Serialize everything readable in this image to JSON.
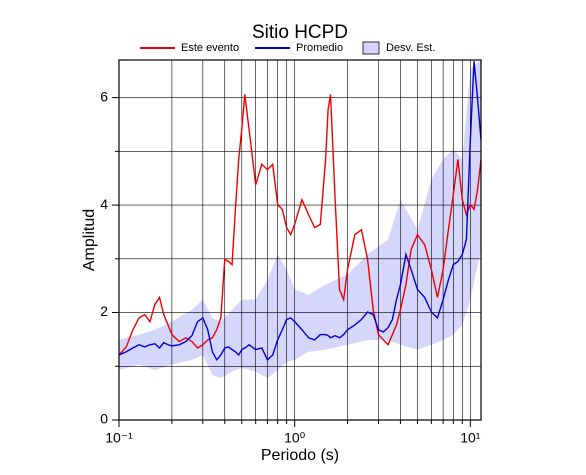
{
  "chart_data": {
    "type": "line",
    "title": "Sitio HCPD",
    "x_label": "Periodo (s)",
    "y_label": "Amplitud",
    "x_scale": "log",
    "xlim": [
      0.1,
      11.5
    ],
    "ylim": [
      0,
      6.7
    ],
    "xticks": [
      {
        "value": 0.1,
        "label": "10⁻¹"
      },
      {
        "value": 1,
        "label": "10⁰"
      },
      {
        "value": 10,
        "label": "10¹"
      }
    ],
    "xgrid": [
      0.2,
      0.3,
      0.4,
      0.5,
      0.6,
      0.7,
      0.8,
      0.9,
      2,
      3,
      4,
      5,
      6,
      7,
      8,
      9
    ],
    "yticks": [
      0,
      2,
      4,
      6
    ],
    "ygrid": [
      1,
      3,
      5
    ],
    "grid": true,
    "x": [
      0.1,
      0.11,
      0.12,
      0.13,
      0.14,
      0.15,
      0.16,
      0.17,
      0.18,
      0.19,
      0.2,
      0.22,
      0.24,
      0.26,
      0.28,
      0.3,
      0.32,
      0.34,
      0.36,
      0.38,
      0.4,
      0.42,
      0.44,
      0.46,
      0.48,
      0.5,
      0.52,
      0.55,
      0.6,
      0.65,
      0.7,
      0.75,
      0.8,
      0.85,
      0.9,
      0.95,
      1.0,
      1.1,
      1.2,
      1.3,
      1.4,
      1.5,
      1.55,
      1.6,
      1.7,
      1.8,
      1.9,
      2.0,
      2.2,
      2.4,
      2.6,
      2.8,
      3.0,
      3.2,
      3.4,
      3.6,
      3.8,
      4.0,
      4.3,
      4.6,
      5.0,
      5.5,
      6.0,
      6.5,
      7.0,
      7.5,
      8.0,
      8.5,
      9.0,
      9.5,
      10,
      10.5,
      11,
      11.5
    ],
    "series": [
      {
        "name": "Este evento",
        "color": "#ee0000",
        "values": [
          1.21,
          1.36,
          1.68,
          1.9,
          1.96,
          1.83,
          2.15,
          2.28,
          1.96,
          1.77,
          1.59,
          1.46,
          1.53,
          1.46,
          1.34,
          1.4,
          1.49,
          1.53,
          1.68,
          1.9,
          2.99,
          2.95,
          2.89,
          3.92,
          4.85,
          5.41,
          6.06,
          5.41,
          4.38,
          4.76,
          4.66,
          4.76,
          4.01,
          3.92,
          3.58,
          3.45,
          3.64,
          4.1,
          3.82,
          3.58,
          3.64,
          4.85,
          5.78,
          6.06,
          4.1,
          2.43,
          2.24,
          2.8,
          3.45,
          3.54,
          2.99,
          2.05,
          1.59,
          1.49,
          1.4,
          1.59,
          1.77,
          2.05,
          2.52,
          3.17,
          3.45,
          3.26,
          2.8,
          2.28,
          2.8,
          3.54,
          4.2,
          4.85,
          4.1,
          3.82,
          4.01,
          3.92,
          4.29,
          4.85
        ]
      },
      {
        "name": "Promedio",
        "color": "#0000dd",
        "values": [
          1.21,
          1.27,
          1.34,
          1.4,
          1.36,
          1.4,
          1.42,
          1.34,
          1.44,
          1.4,
          1.38,
          1.4,
          1.46,
          1.57,
          1.83,
          1.9,
          1.68,
          1.27,
          1.12,
          1.21,
          1.34,
          1.36,
          1.31,
          1.27,
          1.21,
          1.31,
          1.34,
          1.4,
          1.31,
          1.34,
          1.12,
          1.21,
          1.49,
          1.68,
          1.87,
          1.9,
          1.83,
          1.68,
          1.53,
          1.49,
          1.59,
          1.59,
          1.57,
          1.53,
          1.57,
          1.53,
          1.59,
          1.68,
          1.77,
          1.87,
          2.01,
          1.96,
          1.68,
          1.64,
          1.72,
          1.87,
          2.24,
          2.52,
          3.08,
          2.8,
          2.43,
          2.28,
          2.01,
          1.9,
          2.24,
          2.61,
          2.89,
          2.95,
          3.08,
          3.36,
          5.22,
          6.68,
          5.97,
          5.22
        ]
      }
    ],
    "band": {
      "name": "Desv. Est.",
      "color": "#d4d6fb",
      "x": [
        0.1,
        0.13,
        0.16,
        0.2,
        0.26,
        0.3,
        0.34,
        0.38,
        0.44,
        0.5,
        0.6,
        0.7,
        0.8,
        0.9,
        1.0,
        1.2,
        1.5,
        2.0,
        2.6,
        3.4,
        4.0,
        5.0,
        6.0,
        7.0,
        8.0,
        9.0,
        10,
        11.5
      ],
      "low": [
        0.93,
        1.03,
        0.93,
        1.03,
        1.12,
        1.21,
        0.84,
        0.78,
        0.9,
        0.97,
        0.9,
        0.78,
        0.93,
        1.08,
        1.12,
        1.27,
        1.31,
        1.4,
        1.49,
        1.49,
        1.4,
        1.31,
        1.4,
        1.49,
        1.59,
        1.77,
        2.24,
        3.17
      ],
      "high": [
        1.49,
        1.59,
        1.68,
        1.83,
        2.05,
        2.24,
        1.9,
        1.83,
        2.05,
        2.24,
        2.24,
        2.61,
        3.08,
        2.8,
        2.43,
        2.33,
        2.52,
        2.71,
        3.08,
        3.36,
        4.1,
        3.54,
        4.48,
        4.85,
        5.04,
        4.85,
        6.53,
        6.7
      ]
    }
  }
}
